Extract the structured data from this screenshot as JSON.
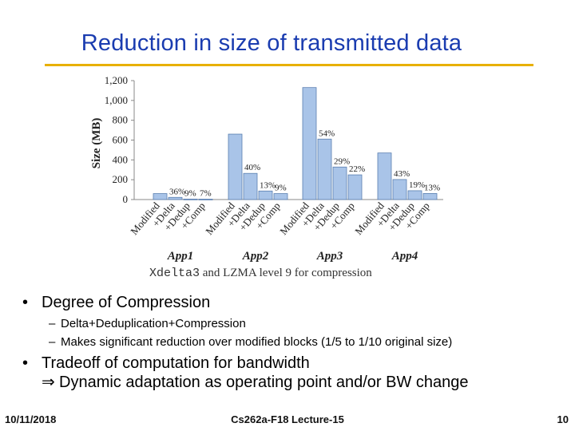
{
  "slide": {
    "title": "Reduction in size of transmitted data",
    "footer": {
      "date": "10/11/2018",
      "course": "Cs262a-F18 Lecture-15",
      "page": "10"
    }
  },
  "colors": {
    "title": "#1a3cb0",
    "rule": "#e8b000",
    "bar": "#a9c4e8",
    "bar_edge": "#5a7fb0"
  },
  "bullets": [
    {
      "text": "Degree of Compression",
      "subitems": [
        "Delta+Deduplication+Compression",
        "Makes significant reduction over modified blocks (1/5 to 1/10 original size)"
      ]
    },
    {
      "text": "Tradeoff of computation for bandwidth",
      "line2": "Dynamic adaptation as operating point and/or BW change",
      "line2_icon": "implies-arrow-icon",
      "line2_glyph": "⇒"
    }
  ],
  "chart_data": {
    "type": "bar",
    "ylabel": "Size (MB)",
    "ylim": [
      0,
      1200
    ],
    "yticks": [
      0,
      200,
      400,
      600,
      800,
      1000,
      1200
    ],
    "ytick_labels": [
      "0",
      "200",
      "400",
      "600",
      "800",
      "1,000",
      "1,200"
    ],
    "caption_mono": "Xdelta3",
    "caption_rest": " and LZMA level 9 for compression",
    "groups": [
      {
        "name": "App1",
        "bars": [
          {
            "label": "Modified",
            "value": 60,
            "pct": ""
          },
          {
            "label": "+Delta",
            "value": 22,
            "pct": "36%"
          },
          {
            "label": "+Dedup",
            "value": 5,
            "pct": "9%"
          },
          {
            "label": "+Comp",
            "value": 4,
            "pct": "7%"
          }
        ]
      },
      {
        "name": "App2",
        "bars": [
          {
            "label": "Modified",
            "value": 660,
            "pct": ""
          },
          {
            "label": "+Delta",
            "value": 264,
            "pct": "40%"
          },
          {
            "label": "+Dedup",
            "value": 86,
            "pct": "13%"
          },
          {
            "label": "+Comp",
            "value": 60,
            "pct": "9%"
          }
        ]
      },
      {
        "name": "App3",
        "bars": [
          {
            "label": "Modified",
            "value": 1130,
            "pct": ""
          },
          {
            "label": "+Delta",
            "value": 610,
            "pct": "54%"
          },
          {
            "label": "+Dedup",
            "value": 328,
            "pct": "29%"
          },
          {
            "label": "+Comp",
            "value": 249,
            "pct": "22%"
          }
        ]
      },
      {
        "name": "App4",
        "bars": [
          {
            "label": "Modified",
            "value": 470,
            "pct": ""
          },
          {
            "label": "+Delta",
            "value": 202,
            "pct": "43%"
          },
          {
            "label": "+Dedup",
            "value": 89,
            "pct": "19%"
          },
          {
            "label": "+Comp",
            "value": 61,
            "pct": "13%"
          }
        ]
      }
    ]
  }
}
